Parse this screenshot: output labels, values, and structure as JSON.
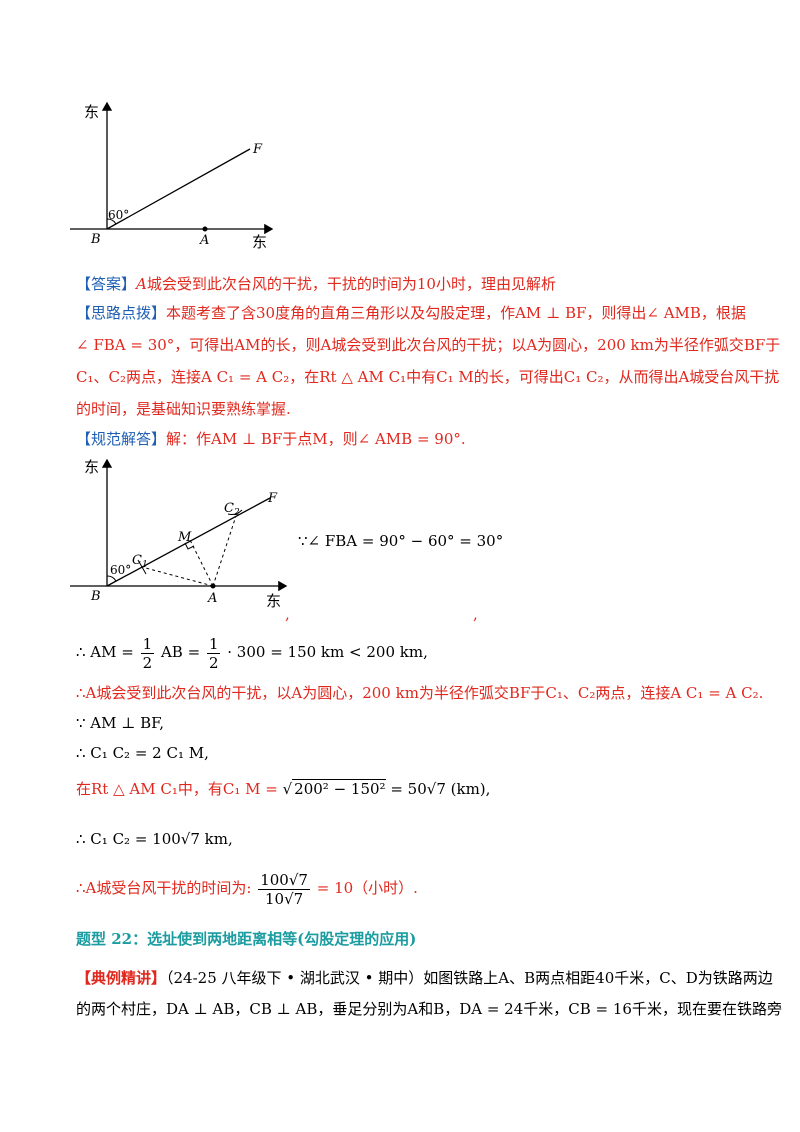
{
  "fig1": {
    "north": "东",
    "east": "东",
    "F": "F",
    "B": "B",
    "A": "A",
    "angle": "60°"
  },
  "answer": {
    "tag": "【答案】",
    "text_a": "A",
    "text": "城会受到此次台风的干扰，干扰的时间为10小时，理由见解析"
  },
  "hint": {
    "tag": "【思路点拨】",
    "line1": "本题考查了含30度角的直角三角形以及勾股定理，作AM ⊥ BF，则得出∠ AMB，根据",
    "line2": "∠ FBA = 30°，可得出AM的长，则A城会受到此次台风的干扰；以A为圆心，200 km为半径作弧交BF于",
    "line3": "C₁、C₂两点，连接A C₁ = A C₂，在Rt △ AM C₁中有C₁ M的长，可得出C₁ C₂，从而得出A城受台风干扰",
    "line4": "的时间，是基础知识要熟练掌握."
  },
  "solution": {
    "tag": "【规范解答】",
    "intro": "解：作AM ⊥ BF于点M，则∠ AMB = 90°."
  },
  "fig2": {
    "north": "东",
    "east": "东",
    "F": "F",
    "B": "B",
    "A": "A",
    "M": "M",
    "C1": "C",
    "C2": "C",
    "sub1": "1",
    "sub2": "2",
    "angle": "60°"
  },
  "steps": {
    "s0": "∵∠ FBA = 90° − 60° = 30°",
    "commas": ",",
    "s1_pre": "∴ AM =",
    "s1_f1n": "1",
    "s1_f1d": "2",
    "s1_mid": "AB =",
    "s1_f2n": "1",
    "s1_f2d": "2",
    "s1_post": "· 300 = 150 km < 200 km,",
    "s2": "∴A城会受到此次台风的干扰，以A为圆心，200 km为半径作弧交BF于C₁、C₂两点，连接A C₁ = A C₂.",
    "s3": "∵ AM ⊥ BF,",
    "s4": "∴ C₁ C₂ = 2 C₁ M,",
    "s5_pre": "在Rt △ AM C₁中，有C₁ M =",
    "s5_rad": "200² − 150²",
    "s5_post": "= 50√7 (km),",
    "s6": "∴ C₁ C₂ = 100√7 km,",
    "s7_pre": "∴A城受台风干扰的时间为:",
    "s7_num": "100√7",
    "s7_den": "10√7",
    "s7_post": "= 10（小时）."
  },
  "section": {
    "title": "题型 22：选址使到两地距离相等(勾股定理的应用)"
  },
  "example": {
    "tag": "【典例精讲】",
    "line1": "（24-25 八年级下 • 湖北武汉 • 期中）如图铁路上A、B两点相距40千米，C、D为铁路两边",
    "line2": "的两个村庄，DA ⊥ AB，CB ⊥ AB，垂足分别为A和B，DA = 24千米，CB = 16千米，现在要在铁路旁"
  }
}
